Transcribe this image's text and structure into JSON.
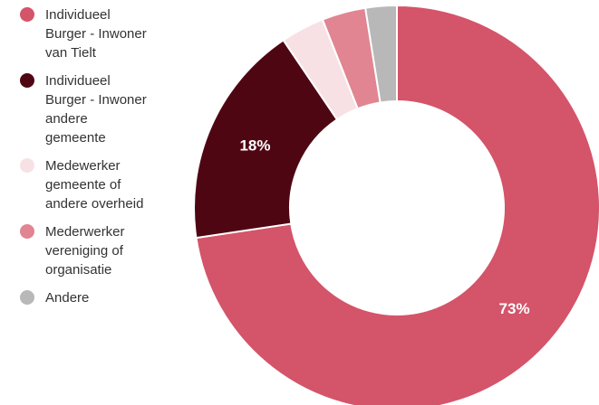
{
  "chart_data": {
    "type": "pie",
    "donut": true,
    "legend_position": "left",
    "series": [
      {
        "name": "Individueel\nBurger - Inwoner\nvan Tielt",
        "value": 73,
        "label": "73%",
        "color": "#d4546a"
      },
      {
        "name": "Individueel\nBurger - Inwoner\nandere\ngemeente",
        "value": 18,
        "label": "18%",
        "color": "#4f0613"
      },
      {
        "name": "Medewerker\ngemeente of\nandere overheid",
        "value": 3.5,
        "label": "",
        "color": "#f8e1e5"
      },
      {
        "name": "Mederwerker\nvereniging of\norganisatie",
        "value": 3.5,
        "label": "",
        "color": "#e08591"
      },
      {
        "name": "Andere",
        "value": 2.5,
        "label": "",
        "color": "#b8b8b8"
      }
    ]
  }
}
